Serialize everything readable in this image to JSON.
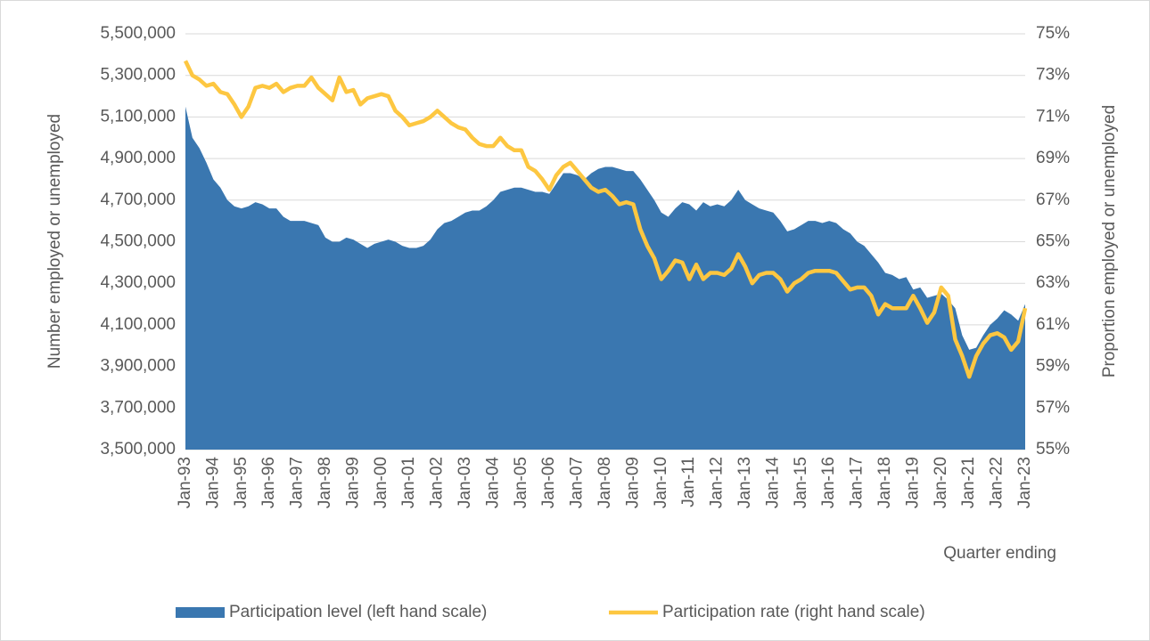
{
  "chart_data": {
    "type": "combo",
    "y_label": "Number employed or unemployed",
    "y2_label": "Proportion employed or unemployed",
    "x_label": "Quarter ending",
    "legend": "bottom",
    "grid": true,
    "categories": [
      "Jan-93",
      null,
      null,
      null,
      "Jan-94",
      null,
      null,
      null,
      "Jan-95",
      null,
      null,
      null,
      "Jan-96",
      null,
      null,
      null,
      "Jan-97",
      null,
      null,
      null,
      "Jan-98",
      null,
      null,
      null,
      "Jan-99",
      null,
      null,
      null,
      "Jan-00",
      null,
      null,
      null,
      "Jan-01",
      null,
      null,
      null,
      "Jan-02",
      null,
      null,
      null,
      "Jan-03",
      null,
      null,
      null,
      "Jan-04",
      null,
      null,
      null,
      "Jan-05",
      null,
      null,
      null,
      "Jan-06",
      null,
      null,
      null,
      "Jan-07",
      null,
      null,
      null,
      "Jan-08",
      null,
      null,
      null,
      "Jan-09",
      null,
      null,
      null,
      "Jan-10",
      null,
      null,
      null,
      "Jan-11",
      null,
      null,
      null,
      "Jan-12",
      null,
      null,
      null,
      "Jan-13",
      null,
      null,
      null,
      "Jan-14",
      null,
      null,
      null,
      "Jan-15",
      null,
      null,
      null,
      "Jan-16",
      null,
      null,
      null,
      "Jan-17",
      null,
      null,
      null,
      "Jan-18",
      null,
      null,
      null,
      "Jan-19",
      null,
      null,
      null,
      "Jan-20",
      null,
      null,
      null,
      "Jan-21",
      null,
      null,
      null,
      "Jan-22",
      null,
      null,
      null,
      "Jan-23"
    ],
    "ylim": [
      3500000,
      5500000
    ],
    "yticks": [
      {
        "value": 3500000,
        "label": "3,500,000"
      },
      {
        "value": 3700000,
        "label": "3,700,000"
      },
      {
        "value": 3900000,
        "label": "3,900,000"
      },
      {
        "value": 4100000,
        "label": "4,100,000"
      },
      {
        "value": 4300000,
        "label": "4,300,000"
      },
      {
        "value": 4500000,
        "label": "4,500,000"
      },
      {
        "value": 4700000,
        "label": "4,700,000"
      },
      {
        "value": 4900000,
        "label": "4,900,000"
      },
      {
        "value": 5100000,
        "label": "5,100,000"
      },
      {
        "value": 5300000,
        "label": "5,300,000"
      },
      {
        "value": 5500000,
        "label": "5,500,000"
      }
    ],
    "y2lim": [
      55,
      75
    ],
    "y2ticks": [
      {
        "value": 55,
        "label": "55%"
      },
      {
        "value": 57,
        "label": "57%"
      },
      {
        "value": 59,
        "label": "59%"
      },
      {
        "value": 61,
        "label": "61%"
      },
      {
        "value": 63,
        "label": "63%"
      },
      {
        "value": 65,
        "label": "65%"
      },
      {
        "value": 67,
        "label": "67%"
      },
      {
        "value": 69,
        "label": "69%"
      },
      {
        "value": 71,
        "label": "71%"
      },
      {
        "value": 73,
        "label": "73%"
      },
      {
        "value": 75,
        "label": "75%"
      }
    ],
    "series": [
      {
        "name": "Participation level (left hand scale)",
        "type": "area",
        "color": "#3a77b0",
        "values": [
          5150000,
          5000000,
          4950000,
          4880000,
          4800000,
          4760000,
          4700000,
          4670000,
          4660000,
          4670000,
          4690000,
          4680000,
          4660000,
          4660000,
          4620000,
          4600000,
          4600000,
          4600000,
          4590000,
          4580000,
          4520000,
          4500000,
          4500000,
          4520000,
          4510000,
          4490000,
          4470000,
          4490000,
          4500000,
          4510000,
          4500000,
          4480000,
          4470000,
          4470000,
          4480000,
          4510000,
          4560000,
          4590000,
          4600000,
          4620000,
          4640000,
          4650000,
          4650000,
          4670000,
          4700000,
          4740000,
          4750000,
          4760000,
          4760000,
          4750000,
          4740000,
          4740000,
          4730000,
          4780000,
          4830000,
          4830000,
          4820000,
          4800000,
          4830000,
          4850000,
          4860000,
          4860000,
          4850000,
          4840000,
          4840000,
          4800000,
          4750000,
          4700000,
          4640000,
          4620000,
          4660000,
          4690000,
          4680000,
          4650000,
          4690000,
          4670000,
          4680000,
          4670000,
          4700000,
          4750000,
          4700000,
          4680000,
          4660000,
          4650000,
          4640000,
          4600000,
          4550000,
          4560000,
          4580000,
          4600000,
          4600000,
          4590000,
          4600000,
          4590000,
          4560000,
          4540000,
          4500000,
          4480000,
          4440000,
          4400000,
          4350000,
          4340000,
          4320000,
          4330000,
          4270000,
          4280000,
          4230000,
          4240000,
          4250000,
          4220000,
          4180000,
          4050000,
          3980000,
          3990000,
          4050000,
          4100000,
          4130000,
          4170000,
          4150000,
          4120000,
          4200000
        ]
      },
      {
        "name": "Participation rate (right hand scale)",
        "type": "line",
        "axis": "y2",
        "color": "#fdc741",
        "values": [
          73.7,
          73.0,
          72.8,
          72.5,
          72.6,
          72.2,
          72.1,
          71.6,
          71.0,
          71.5,
          72.4,
          72.5,
          72.4,
          72.6,
          72.2,
          72.4,
          72.5,
          72.5,
          72.9,
          72.4,
          72.1,
          71.8,
          72.9,
          72.2,
          72.3,
          71.6,
          71.9,
          72.0,
          72.1,
          72.0,
          71.3,
          71.0,
          70.6,
          70.7,
          70.8,
          71.0,
          71.3,
          71.0,
          70.7,
          70.5,
          70.4,
          70.0,
          69.7,
          69.6,
          69.6,
          70.0,
          69.6,
          69.4,
          69.4,
          68.6,
          68.4,
          68.0,
          67.5,
          68.2,
          68.6,
          68.8,
          68.4,
          68.0,
          67.6,
          67.4,
          67.5,
          67.2,
          66.8,
          66.9,
          66.8,
          65.6,
          64.8,
          64.2,
          63.2,
          63.6,
          64.1,
          64.0,
          63.2,
          63.9,
          63.2,
          63.5,
          63.5,
          63.4,
          63.7,
          64.4,
          63.8,
          63.0,
          63.4,
          63.5,
          63.5,
          63.2,
          62.6,
          63.0,
          63.2,
          63.5,
          63.6,
          63.6,
          63.6,
          63.5,
          63.1,
          62.7,
          62.8,
          62.8,
          62.4,
          61.5,
          62.0,
          61.8,
          61.8,
          61.8,
          62.4,
          61.8,
          61.1,
          61.6,
          62.8,
          62.4,
          60.3,
          59.5,
          58.5,
          59.5,
          60.1,
          60.5,
          60.6,
          60.4,
          59.8,
          60.2,
          61.8
        ]
      }
    ]
  }
}
